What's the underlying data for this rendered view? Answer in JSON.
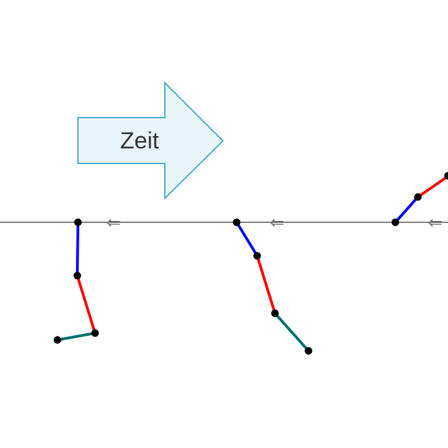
{
  "time_arrow": {
    "label": "Zeit",
    "fill": "#e8f5f9",
    "stroke": "#4ab0c8"
  },
  "baseline": {
    "color": "#333333"
  },
  "direction_marker": {
    "glyph": "⇐",
    "color": "#7a7a7a"
  },
  "segment_colors": {
    "upper": "#0000ff",
    "middle": "#ff0000",
    "lower": "#007070"
  },
  "joint_color": "#000000"
}
